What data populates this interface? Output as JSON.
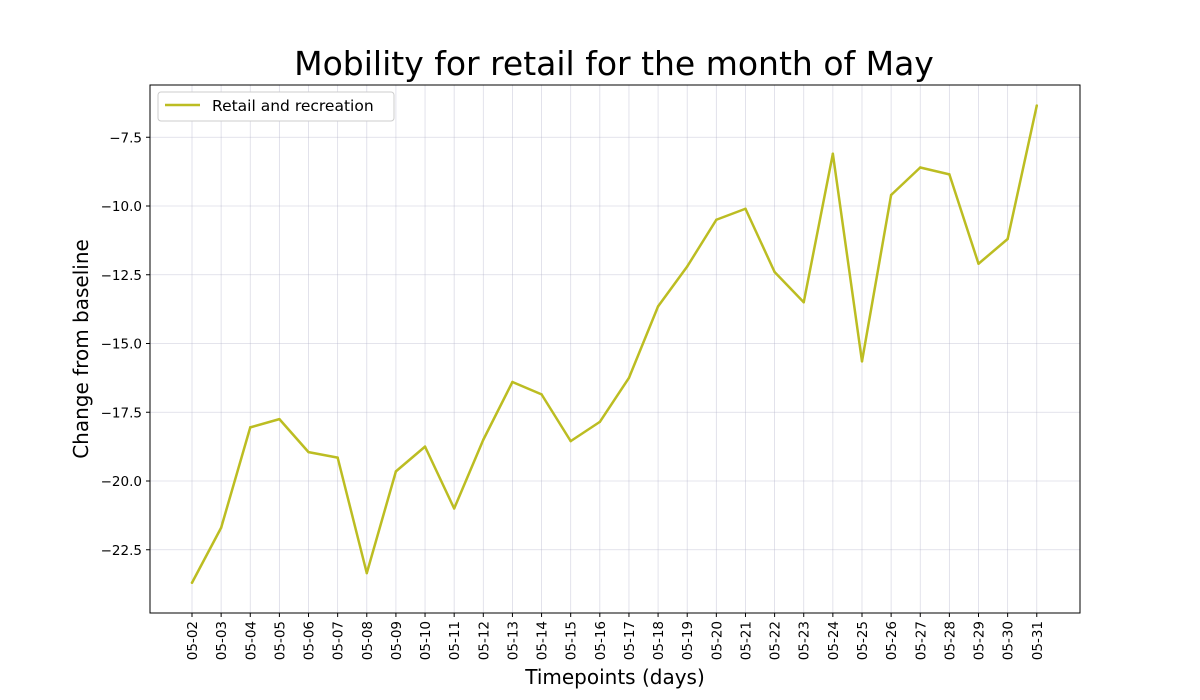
{
  "chart_data": {
    "type": "line",
    "title": "Mobility for retail for the month of May",
    "xlabel": "Timepoints (days)",
    "ylabel": "Change from baseline",
    "categories": [
      "05-02",
      "05-03",
      "05-04",
      "05-05",
      "05-06",
      "05-07",
      "05-08",
      "05-09",
      "05-10",
      "05-11",
      "05-12",
      "05-13",
      "05-14",
      "05-15",
      "05-16",
      "05-17",
      "05-18",
      "05-19",
      "05-20",
      "05-21",
      "05-22",
      "05-23",
      "05-24",
      "05-25",
      "05-26",
      "05-27",
      "05-28",
      "05-29",
      "05-30",
      "05-31"
    ],
    "series": [
      {
        "name": "Retail and recreation",
        "color": "#bcbd22",
        "values": [
          -23.7,
          -21.7,
          -18.05,
          -17.75,
          -18.95,
          -19.15,
          -23.35,
          -19.65,
          -18.75,
          -21.0,
          -18.5,
          -16.4,
          -16.85,
          -18.55,
          -17.85,
          -16.25,
          -13.65,
          -12.2,
          -10.5,
          -10.1,
          -12.4,
          -13.5,
          -8.1,
          -15.65,
          -9.6,
          -8.6,
          -8.85,
          -12.1,
          -11.2,
          -6.35
        ]
      }
    ],
    "yticks": [
      -22.5,
      -20.0,
      -17.5,
      -15.0,
      -12.5,
      -10.0,
      -7.5
    ],
    "ytick_labels": [
      "−22.5",
      "−20.0",
      "−17.5",
      "−15.0",
      "−12.5",
      "−10.0",
      "−7.5"
    ],
    "ylim": [
      -24.8,
      -5.6
    ],
    "grid": true,
    "legend_position": "top-left"
  }
}
